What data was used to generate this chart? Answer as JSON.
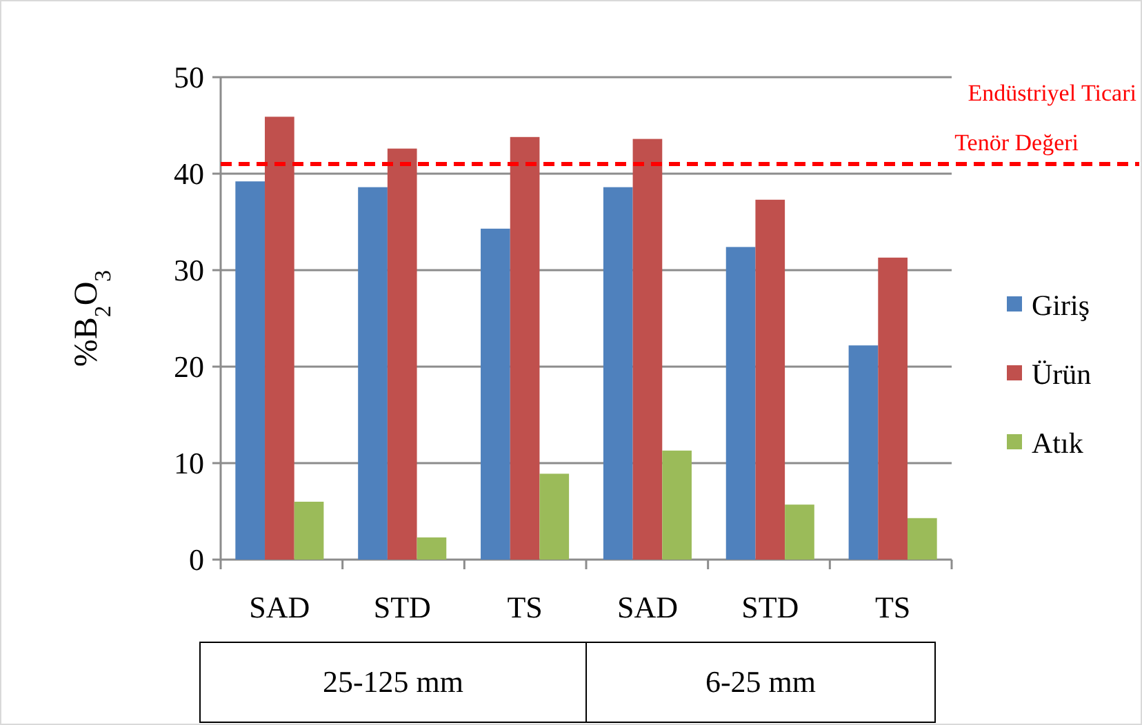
{
  "chart_data": {
    "type": "bar",
    "ylabel": "%B$_{2}$O$_{3}$",
    "categories": [
      "SAD",
      "STD",
      "TS",
      "SAD",
      "STD",
      "TS"
    ],
    "series": [
      {
        "name": "Giriş",
        "color": "#4f81bd",
        "values": [
          39.2,
          38.6,
          34.3,
          38.6,
          32.4,
          22.2
        ]
      },
      {
        "name": "Ürün",
        "color": "#c0504d",
        "values": [
          45.9,
          42.6,
          43.8,
          43.6,
          37.3,
          31.3
        ]
      },
      {
        "name": "Atık",
        "color": "#9bbb59",
        "values": [
          6.0,
          2.3,
          8.9,
          11.3,
          5.7,
          4.3
        ]
      }
    ],
    "ylim": [
      0,
      50
    ],
    "yticks": [
      0,
      10,
      20,
      30,
      40,
      50
    ],
    "grid": "y",
    "legend": "right",
    "ref_lines": [
      {
        "axis": "y",
        "value": 41,
        "label": "Endüstriyel Ticari Tenör Değeri",
        "color": "#ff0000",
        "line_style": "dashed"
      }
    ],
    "annotations": [
      "25-125 mm",
      "6-25 mm"
    ]
  }
}
